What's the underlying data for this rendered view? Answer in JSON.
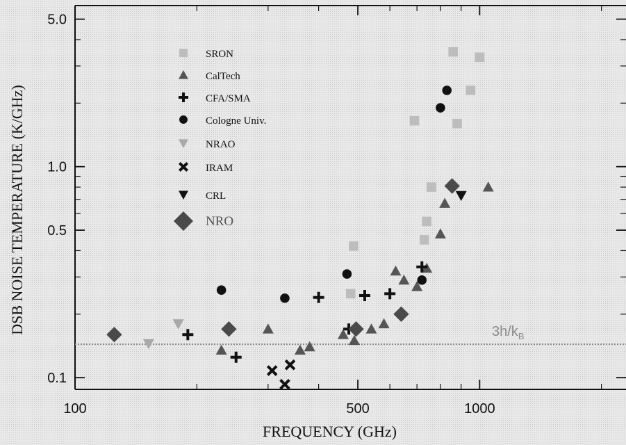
{
  "chart_data": {
    "type": "scatter",
    "title": "",
    "xlabel": "FREQUENCY  (GHz)",
    "ylabel": "DSB NOISE TEMPERATURE  (K/GHz)",
    "xscale": "log",
    "yscale": "log",
    "xlim": [
      100,
      2300
    ],
    "ylim": [
      0.088,
      5.8
    ],
    "x_ticks": [
      {
        "value": 100,
        "label": "100"
      },
      {
        "value": 500,
        "label": "500"
      },
      {
        "value": 1000,
        "label": "1000"
      }
    ],
    "y_ticks": [
      {
        "value": 5.0,
        "label": "5.0"
      },
      {
        "value": 1.0,
        "label": "1.0"
      },
      {
        "value": 0.5,
        "label": "0.5"
      },
      {
        "value": 0.1,
        "label": "0.1"
      }
    ],
    "grid": false,
    "legend_position": "top-left",
    "annotation": {
      "label": "3h/k",
      "subscript": "B",
      "value": 0.144
    },
    "series": [
      {
        "name": "SRON",
        "marker": "square",
        "color": "#bdbdbd",
        "points": [
          [
            488,
            0.42
          ],
          [
            480,
            0.25
          ],
          [
            690,
            1.65
          ],
          [
            740,
            0.55
          ],
          [
            730,
            0.45
          ],
          [
            760,
            0.8
          ],
          [
            860,
            3.5
          ],
          [
            880,
            1.6
          ],
          [
            950,
            2.3
          ],
          [
            1000,
            3.3
          ]
        ]
      },
      {
        "name": "CalTech",
        "marker": "triangle-up",
        "color": "#555555",
        "points": [
          [
            230,
            0.135
          ],
          [
            300,
            0.17
          ],
          [
            360,
            0.135
          ],
          [
            380,
            0.14
          ],
          [
            460,
            0.16
          ],
          [
            490,
            0.15
          ],
          [
            540,
            0.17
          ],
          [
            580,
            0.18
          ],
          [
            620,
            0.32
          ],
          [
            650,
            0.29
          ],
          [
            700,
            0.27
          ],
          [
            740,
            0.33
          ],
          [
            800,
            0.48
          ],
          [
            820,
            0.67
          ],
          [
            1050,
            0.8
          ]
        ]
      },
      {
        "name": "CFA/SMA",
        "marker": "plus",
        "color": "#111111",
        "points": [
          [
            190,
            0.16
          ],
          [
            250,
            0.125
          ],
          [
            400,
            0.24
          ],
          [
            475,
            0.17
          ],
          [
            520,
            0.245
          ],
          [
            600,
            0.25
          ],
          [
            720,
            0.335
          ]
        ]
      },
      {
        "name": "Cologne Univ.",
        "marker": "circle",
        "color": "#111111",
        "points": [
          [
            230,
            0.26
          ],
          [
            330,
            0.238
          ],
          [
            470,
            0.31
          ],
          [
            720,
            0.29
          ],
          [
            800,
            1.9
          ],
          [
            830,
            2.3
          ]
        ]
      },
      {
        "name": "NRAO",
        "marker": "triangle-down",
        "color": "#a8a8a8",
        "points": [
          [
            152,
            0.145
          ],
          [
            180,
            0.18
          ]
        ]
      },
      {
        "name": "IRAM",
        "marker": "x",
        "color": "#111111",
        "points": [
          [
            307,
            0.108
          ],
          [
            330,
            0.093
          ],
          [
            340,
            0.115
          ]
        ]
      },
      {
        "name": "CRL",
        "marker": "triangle-down",
        "color": "#111111",
        "points": [
          [
            900,
            0.73
          ]
        ]
      },
      {
        "name": "NRO",
        "marker": "diamond",
        "color": "#4a4a4a",
        "points": [
          [
            125,
            0.16
          ],
          [
            240,
            0.17
          ],
          [
            495,
            0.17
          ],
          [
            640,
            0.2
          ],
          [
            855,
            0.81
          ]
        ]
      }
    ]
  }
}
